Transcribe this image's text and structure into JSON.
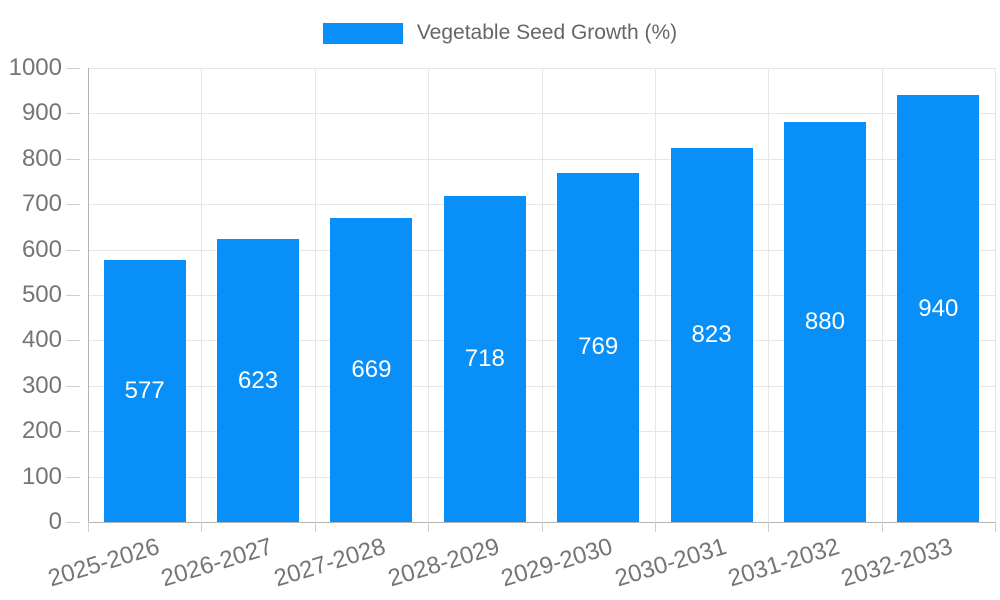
{
  "legend": {
    "label": "Vegetable Seed Growth (%)"
  },
  "chart_data": {
    "type": "bar",
    "title": "Vegetable Seed Growth (%)",
    "categories": [
      "2025-2026",
      "2026-2027",
      "2027-2028",
      "2028-2029",
      "2029-2030",
      "2030-2031",
      "2031-2032",
      "2032-2033"
    ],
    "values": [
      577,
      623,
      669,
      718,
      769,
      823,
      880,
      940
    ],
    "value_labels": [
      "577",
      "623",
      "669",
      "718",
      "769",
      "823",
      "880",
      "940"
    ],
    "xlabel": "",
    "ylabel": "",
    "ylim": [
      0,
      1000
    ],
    "ytick_step": 100,
    "yticks": [
      0,
      100,
      200,
      300,
      400,
      500,
      600,
      700,
      800,
      900,
      1000
    ],
    "grid": true,
    "legend_position": "top",
    "bar_value_labels_inside": true,
    "xtick_rotation_deg": -17
  },
  "colors": {
    "bar": "#0890f8",
    "bar_value_text": "#ffffff",
    "tick_text": "#757575",
    "legend_text": "#666666",
    "grid": "#e6e6e6",
    "axis": "#b3b3b3",
    "tick_mark": "#cfcfcf",
    "background": "#ffffff"
  }
}
